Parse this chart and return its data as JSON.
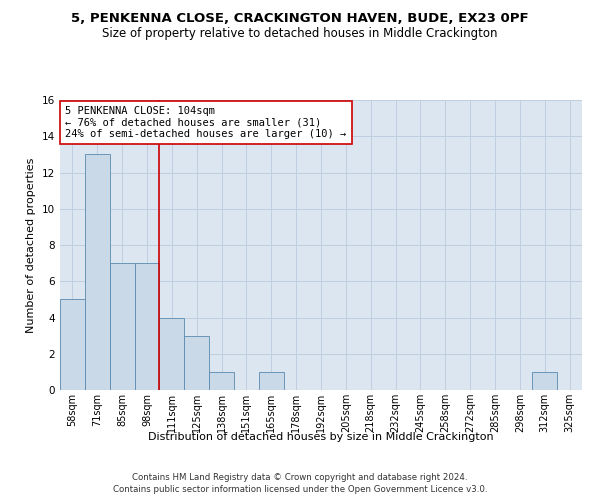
{
  "title": "5, PENKENNA CLOSE, CRACKINGTON HAVEN, BUDE, EX23 0PF",
  "subtitle": "Size of property relative to detached houses in Middle Crackington",
  "xlabel": "Distribution of detached houses by size in Middle Crackington",
  "ylabel": "Number of detached properties",
  "categories": [
    "58sqm",
    "71sqm",
    "85sqm",
    "98sqm",
    "111sqm",
    "125sqm",
    "138sqm",
    "151sqm",
    "165sqm",
    "178sqm",
    "192sqm",
    "205sqm",
    "218sqm",
    "232sqm",
    "245sqm",
    "258sqm",
    "272sqm",
    "285sqm",
    "298sqm",
    "312sqm",
    "325sqm"
  ],
  "values": [
    5,
    13,
    7,
    7,
    4,
    3,
    1,
    0,
    1,
    0,
    0,
    0,
    0,
    0,
    0,
    0,
    0,
    0,
    0,
    1,
    0
  ],
  "bar_color": "#c9d9e8",
  "bar_edge_color": "#5a8ab0",
  "ylim": [
    0,
    16
  ],
  "yticks": [
    0,
    2,
    4,
    6,
    8,
    10,
    12,
    14,
    16
  ],
  "property_line_x": 3.5,
  "annotation_text": "5 PENKENNA CLOSE: 104sqm\n← 76% of detached houses are smaller (31)\n24% of semi-detached houses are larger (10) →",
  "footnote1": "Contains HM Land Registry data © Crown copyright and database right 2024.",
  "footnote2": "Contains public sector information licensed under the Open Government Licence v3.0.",
  "title_fontsize": 9.5,
  "subtitle_fontsize": 8.5,
  "annotation_fontsize": 7.5,
  "annotation_box_color": "#ffffff",
  "annotation_box_edge": "#cc0000",
  "vline_color": "#cc0000",
  "bg_color": "#dce6f0",
  "grid_color": "#c0cfe0"
}
